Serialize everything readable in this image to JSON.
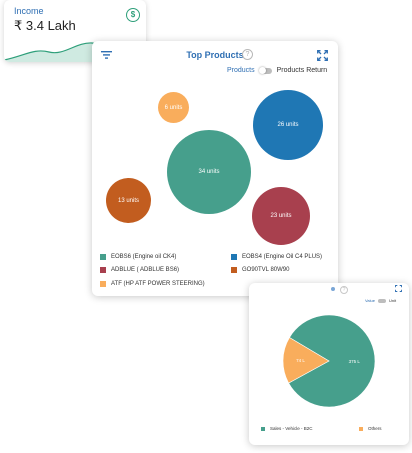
{
  "income": {
    "title": "Income",
    "value": "₹ 3.4 Lakh",
    "icon": "dollar-circle-icon",
    "accent": "#2e9f7a"
  },
  "top_products": {
    "title": "Top Products",
    "help_glyph": "?",
    "toggle_left": "Products",
    "toggle_right": "Products Return",
    "bubbles": [
      {
        "label": "6 units",
        "color": "#f9ad5c"
      },
      {
        "label": "26 units",
        "color": "#1f77b4"
      },
      {
        "label": "34 units",
        "color": "#469f8c"
      },
      {
        "label": "13 units",
        "color": "#c25d1f"
      },
      {
        "label": "23 units",
        "color": "#a8404e"
      }
    ],
    "legend": [
      {
        "label": "EOBS6 (Engine oil CK4)",
        "color": "#469f8c"
      },
      {
        "label": "EOBS4 (Engine Oil C4 PLUS)",
        "color": "#1f77b4"
      },
      {
        "label": "ADBLUE ( ADBLUE BS6)",
        "color": "#a8404e"
      },
      {
        "label": "GO90TVL 80W90",
        "color": "#c25d1f"
      },
      {
        "label": "ATF (HP ATF POWER STEERING)",
        "color": "#f9ad5c"
      }
    ]
  },
  "sales": {
    "help_glyph": "?",
    "toggle_left": "Value",
    "toggle_right": "Unit",
    "chart_data": {
      "type": "pie",
      "slices": [
        {
          "name": "Sales - Vehicle - B2C",
          "value": 375,
          "label": "375 L",
          "color": "#469f8c"
        },
        {
          "name": "Others",
          "value": 74,
          "label": "74 L",
          "color": "#f9ad5c"
        }
      ]
    }
  }
}
